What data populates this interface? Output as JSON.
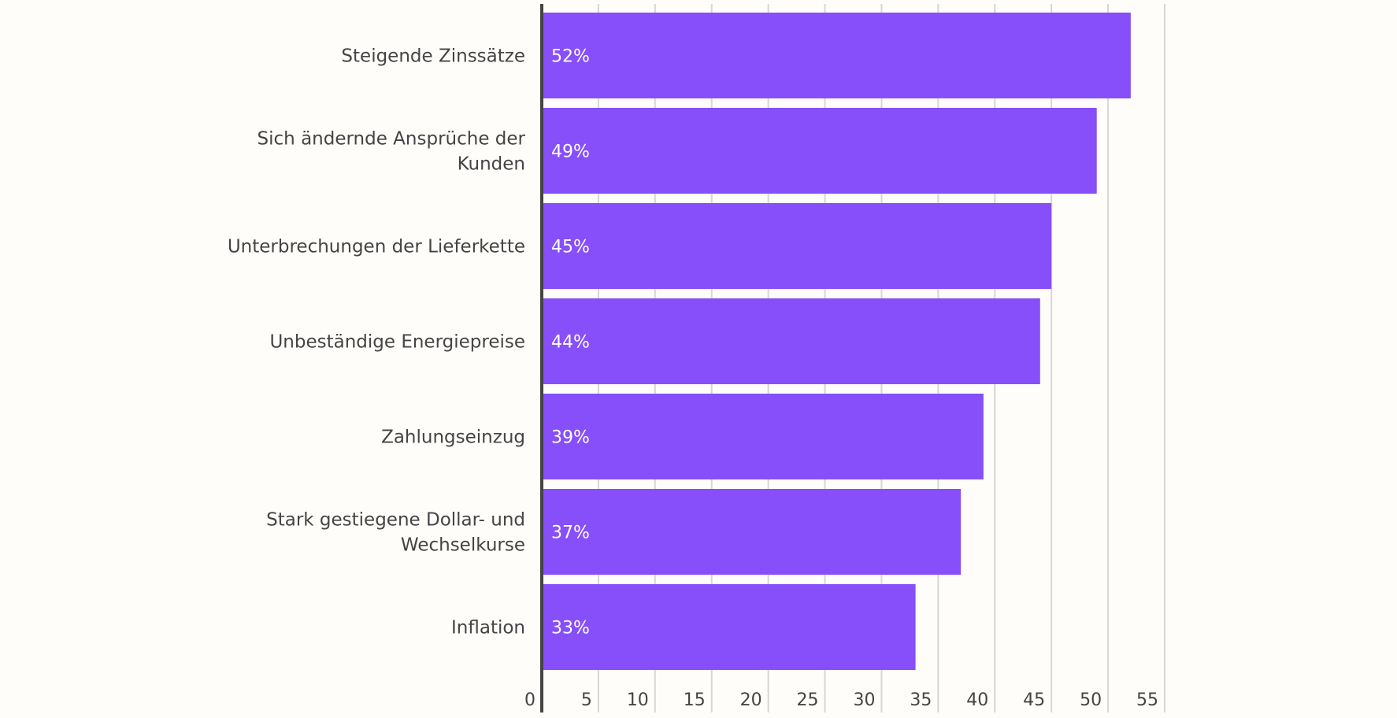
{
  "chart_data": {
    "type": "bar",
    "orientation": "horizontal",
    "title": "",
    "xlabel": "",
    "ylabel": "",
    "categories": [
      [
        "Steigende Zinssätze"
      ],
      [
        "Sich ändernde Ansprüche der",
        "Kunden"
      ],
      [
        "Unterbrechungen der Lieferkette"
      ],
      [
        "Unbeständige Energiepreise"
      ],
      [
        "Zahlungseinzug"
      ],
      [
        "Stark gestiegene Dollar- und",
        "Wechselkurse"
      ],
      [
        "Inflation"
      ]
    ],
    "values": [
      52,
      49,
      45,
      44,
      39,
      37,
      33
    ],
    "value_labels": [
      "52%",
      "49%",
      "45%",
      "44%",
      "39%",
      "37%",
      "33%"
    ],
    "xlim": [
      0,
      55
    ],
    "xticks": [
      0,
      5,
      10,
      15,
      20,
      25,
      30,
      35,
      40,
      45,
      50,
      55
    ],
    "grid": true,
    "bar_color": "#874ffa",
    "background": "#fffdfa"
  }
}
